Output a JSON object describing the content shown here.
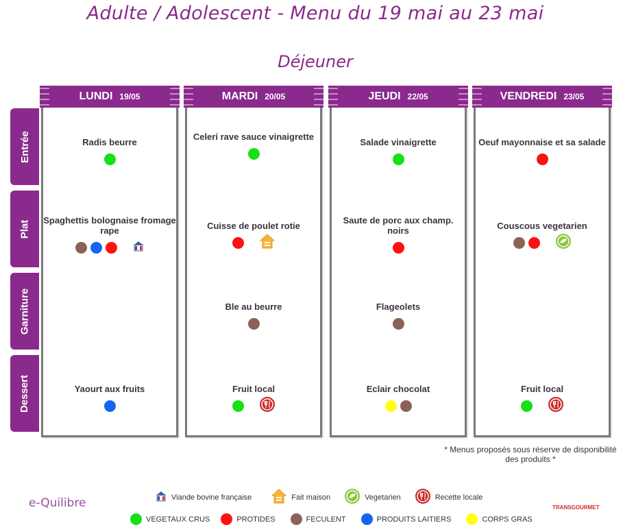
{
  "header": {
    "title": "Adulte / Adolescent - Menu du 19 mai au 23 mai",
    "subtitle": "Déjeuner"
  },
  "rows": [
    "Entrée",
    "Plat",
    "Garniture",
    "Dessert"
  ],
  "days": [
    {
      "name": "LUNDI",
      "date": "19/05",
      "entree": {
        "name": "Radis beurre",
        "markers": [
          "green"
        ]
      },
      "plat": {
        "name": "Spaghettis bolognaise fromage rape",
        "markers": [
          "brown",
          "blue",
          "red",
          "viande-bovine-icon"
        ]
      },
      "garniture": {
        "name": "",
        "markers": []
      },
      "dessert": {
        "name": "Yaourt aux fruits",
        "markers": [
          "blue"
        ]
      }
    },
    {
      "name": "MARDI",
      "date": "20/05",
      "entree": {
        "name": "Celeri rave sauce vinaigrette",
        "markers": [
          "green"
        ]
      },
      "plat": {
        "name": "Cuisse de poulet rotie",
        "markers": [
          "red",
          "fait-maison-icon"
        ]
      },
      "garniture": {
        "name": "Ble au beurre",
        "markers": [
          "brown"
        ]
      },
      "dessert": {
        "name": "Fruit local",
        "markers": [
          "green",
          "recette-locale-icon"
        ]
      }
    },
    {
      "name": "JEUDI",
      "date": "22/05",
      "entree": {
        "name": "Salade vinaigrette",
        "markers": [
          "green"
        ]
      },
      "plat": {
        "name": "Saute de porc aux champ. noirs",
        "markers": [
          "red"
        ]
      },
      "garniture": {
        "name": "Flageolets",
        "markers": [
          "brown"
        ]
      },
      "dessert": {
        "name": "Eclair chocolat",
        "markers": [
          "yellow",
          "brown"
        ]
      }
    },
    {
      "name": "VENDREDI",
      "date": "23/05",
      "entree": {
        "name": "Oeuf mayonnaise et sa salade",
        "markers": [
          "red"
        ]
      },
      "plat": {
        "name": "Couscous vegetarien",
        "markers": [
          "brown",
          "red",
          "vegetarien-icon"
        ]
      },
      "garniture": {
        "name": "",
        "markers": []
      },
      "dessert": {
        "name": "Fruit local",
        "markers": [
          "green",
          "recette-locale-icon"
        ]
      }
    }
  ],
  "note": "* Menus proposés sous réserve de disponibilité des produits *",
  "legend_icons": [
    {
      "icon": "viande-bovine-icon",
      "label": "Viande bovine française"
    },
    {
      "icon": "fait-maison-icon",
      "label": "Fait maison"
    },
    {
      "icon": "vegetarien-icon",
      "label": "Vegetarien"
    },
    {
      "icon": "recette-locale-icon",
      "label": "Recette locale"
    }
  ],
  "legend_colors": [
    {
      "color": "#16e016",
      "label": "VEGETAUX CRUS"
    },
    {
      "color": "#ff1010",
      "label": "PROTIDES"
    },
    {
      "color": "#8c6258",
      "label": "FECULENT"
    },
    {
      "color": "#1565f0",
      "label": "PRODUITS LAITIERS"
    },
    {
      "color": "#ffff10",
      "label": "CORPS GRAS"
    }
  ],
  "colors": {
    "green": "#16e016",
    "red": "#ff1010",
    "brown": "#8c6258",
    "blue": "#1565f0",
    "yellow": "#ffff10",
    "accent": "#8a2a8c"
  },
  "logos": {
    "left": "e-Quilibre",
    "right": "TRANSGOURMET"
  }
}
